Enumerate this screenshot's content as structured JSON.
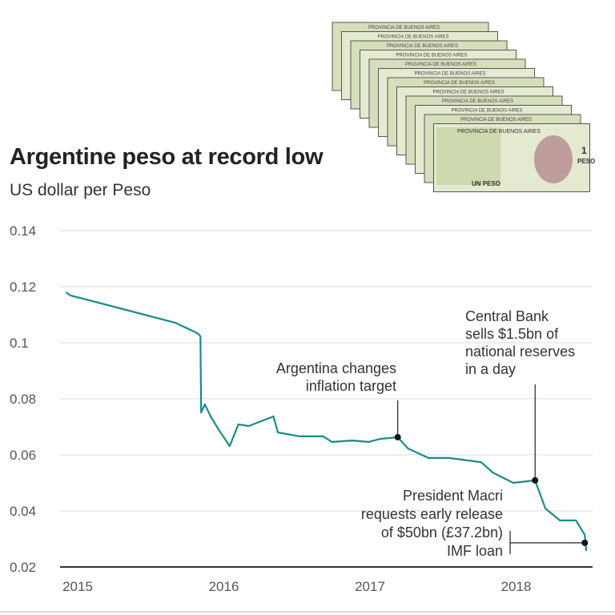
{
  "chart_data": {
    "type": "line",
    "title": "Argentine peso at record low",
    "subtitle": "US dollar per Peso",
    "xlabel": "",
    "ylabel": "",
    "xlim": [
      2014.92,
      2018.5
    ],
    "ylim": [
      0.02,
      0.14
    ],
    "x_ticks": [
      "2015",
      "2016",
      "2017",
      "2018"
    ],
    "x_tick_values": [
      2015,
      2016,
      2017,
      2018
    ],
    "y_ticks": [
      "0.02",
      "0.04",
      "0.06",
      "0.08",
      "0.1",
      "0.12",
      "0.14"
    ],
    "y_tick_values": [
      0.02,
      0.04,
      0.06,
      0.08,
      0.1,
      0.12,
      0.14
    ],
    "grid": "horizontal",
    "color": "#1a8a8a",
    "series": [
      {
        "x": [
          2014.92,
          2014.95,
          2015.29,
          2015.67,
          2015.82,
          2015.84,
          2015.845,
          2015.87,
          2015.91,
          2015.96,
          2016.04,
          2016.1,
          2016.17,
          2016.3,
          2016.34,
          2016.37,
          2016.52,
          2016.68,
          2016.74,
          2016.88,
          2016.99,
          2017.07,
          2017.19,
          2017.26,
          2017.4,
          2017.54,
          2017.76,
          2017.84,
          2017.98,
          2018.13,
          2018.2,
          2018.3,
          2018.41,
          2018.47,
          2018.48
        ],
        "y": [
          0.118,
          0.1169,
          0.1123,
          0.1071,
          0.1034,
          0.1023,
          0.0751,
          0.078,
          0.0737,
          0.0694,
          0.0631,
          0.0709,
          0.0703,
          0.0729,
          0.0737,
          0.068,
          0.0666,
          0.0666,
          0.0646,
          0.0651,
          0.0646,
          0.0657,
          0.0663,
          0.0623,
          0.0589,
          0.0589,
          0.0574,
          0.0537,
          0.05,
          0.0509,
          0.0409,
          0.0366,
          0.0366,
          0.0314,
          0.0257
        ]
      }
    ],
    "annotations": [
      {
        "lines": [
          "Argentina changes",
          "inflation target"
        ],
        "x": 2017.19,
        "y": 0.0663
      },
      {
        "lines": [
          "Central Bank",
          "sells $1.5bn of",
          "national reserves",
          "in a day"
        ],
        "x": 2018.13,
        "y": 0.0509
      },
      {
        "lines": [
          "President Macri",
          "requests early release",
          "of $50bn (£37.2bn)",
          "IMF loan"
        ],
        "x": 2018.47,
        "y": 0.0286
      }
    ]
  },
  "image": {
    "banknote_text": [
      "PROVINCIA DE BUENOS AIRES",
      "1",
      "PESO",
      "UN PESO"
    ]
  }
}
